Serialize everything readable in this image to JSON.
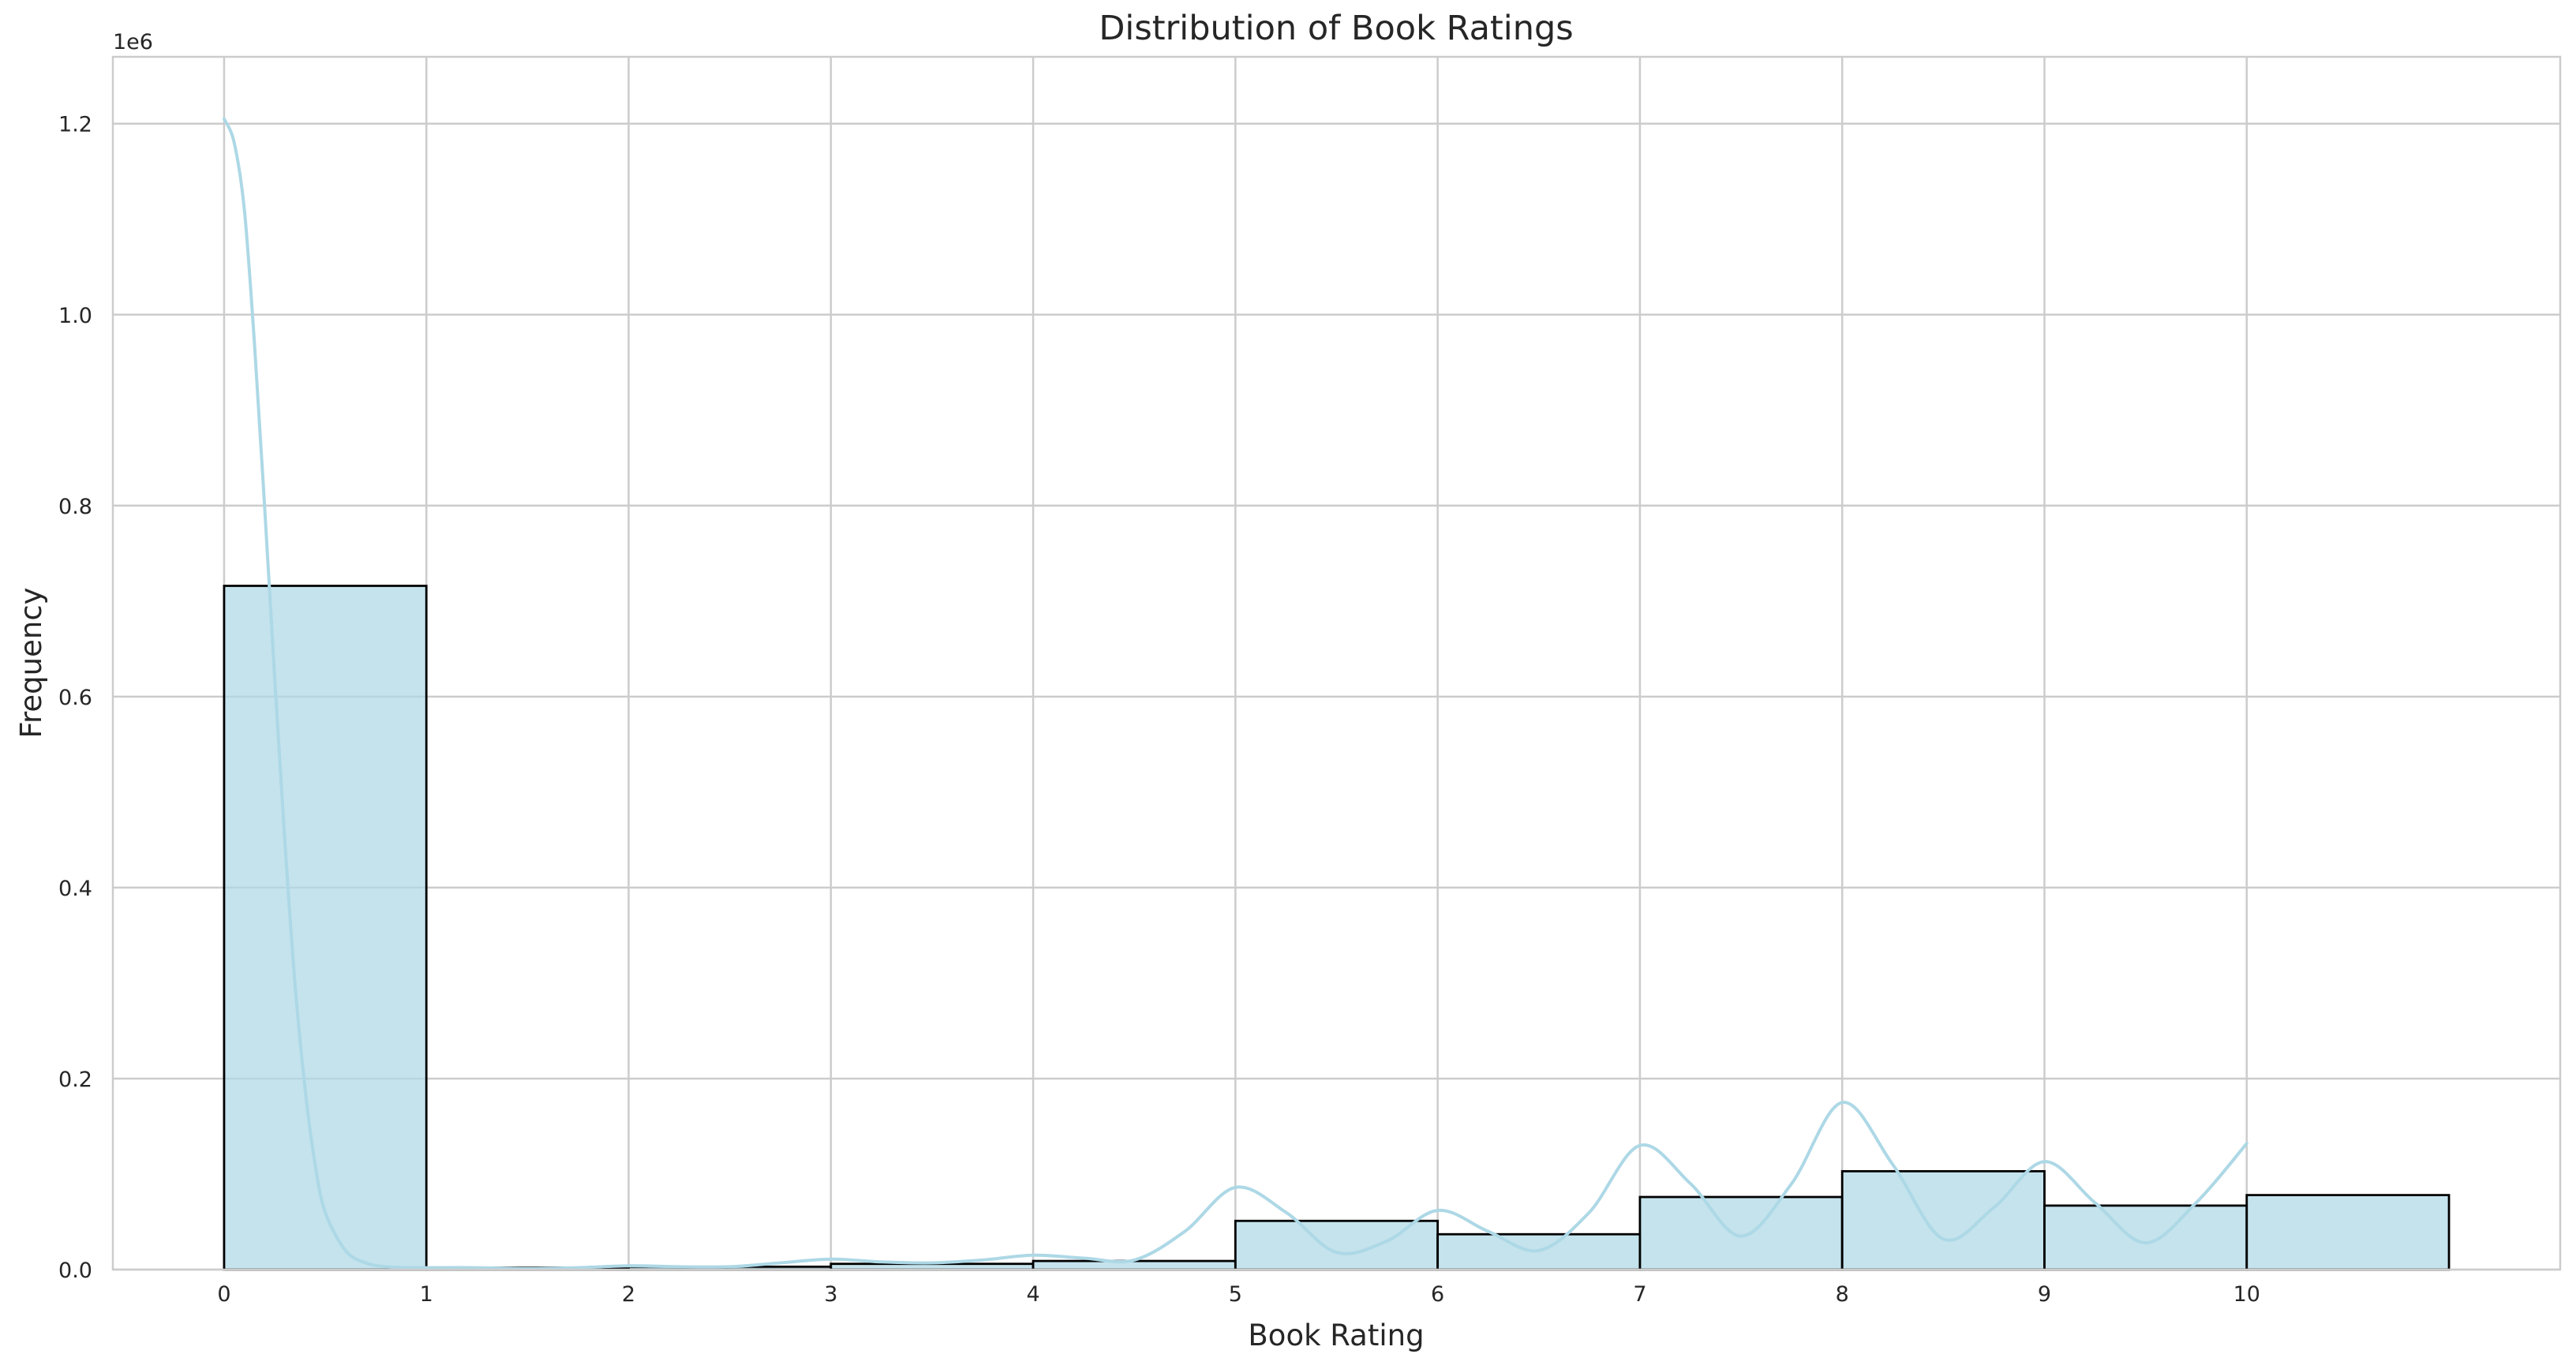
{
  "chart_data": {
    "type": "bar",
    "title": "Distribution of Book Ratings",
    "xlabel": "Book Rating",
    "ylabel": "Frequency",
    "y_offset_label": "1e6",
    "xlim": [
      -0.55,
      11.55
    ],
    "ylim": [
      0,
      1.27
    ],
    "x_ticks": [
      0,
      1,
      2,
      3,
      4,
      5,
      6,
      7,
      8,
      9,
      10
    ],
    "x_tick_labels": [
      "0",
      "1",
      "2",
      "3",
      "4",
      "5",
      "6",
      "7",
      "8",
      "9",
      "10"
    ],
    "y_ticks": [
      0.0,
      0.2,
      0.4,
      0.6,
      0.8,
      1.0,
      1.2
    ],
    "y_tick_labels": [
      "0.0",
      "0.2",
      "0.4",
      "0.6",
      "0.8",
      "1.0",
      "1.2"
    ],
    "grid": true,
    "bar_fill": "#add8e6",
    "bar_edge": "#000000",
    "kde_color": "#add8e6",
    "bins": [
      {
        "x0": 0,
        "x1": 1,
        "value": 0.716
      },
      {
        "x0": 1,
        "x1": 2,
        "value": 0.002
      },
      {
        "x0": 2,
        "x1": 3,
        "value": 0.003
      },
      {
        "x0": 3,
        "x1": 4,
        "value": 0.006
      },
      {
        "x0": 4,
        "x1": 5,
        "value": 0.009
      },
      {
        "x0": 5,
        "x1": 6,
        "value": 0.051
      },
      {
        "x0": 6,
        "x1": 7,
        "value": 0.037
      },
      {
        "x0": 7,
        "x1": 8,
        "value": 0.076
      },
      {
        "x0": 8,
        "x1": 9,
        "value": 0.103
      },
      {
        "x0": 9,
        "x1": 10,
        "value": 0.067
      },
      {
        "x0": 10,
        "x1": 11,
        "value": 0.078
      }
    ],
    "kde": {
      "x": [
        0,
        0.05,
        0.1,
        0.15,
        0.2,
        0.25,
        0.3,
        0.35,
        0.4,
        0.45,
        0.5,
        0.6,
        0.7,
        0.8,
        0.9,
        1.0,
        1.25,
        1.5,
        1.75,
        2.0,
        2.25,
        2.5,
        2.75,
        3.0,
        3.25,
        3.5,
        3.75,
        4.0,
        4.25,
        4.5,
        4.75,
        5.0,
        5.25,
        5.5,
        5.75,
        6.0,
        6.25,
        6.5,
        6.75,
        7.0,
        7.25,
        7.5,
        7.75,
        8.0,
        8.25,
        8.5,
        8.75,
        9.0,
        9.25,
        9.5,
        9.75,
        10.0
      ],
      "y": [
        1.205,
        1.18,
        1.11,
        0.97,
        0.8,
        0.62,
        0.45,
        0.3,
        0.19,
        0.11,
        0.06,
        0.02,
        0.007,
        0.003,
        0.002,
        0.002,
        0.002,
        0.001,
        0.002,
        0.004,
        0.003,
        0.003,
        0.007,
        0.011,
        0.008,
        0.007,
        0.01,
        0.015,
        0.012,
        0.01,
        0.04,
        0.086,
        0.06,
        0.018,
        0.03,
        0.062,
        0.04,
        0.02,
        0.06,
        0.13,
        0.09,
        0.035,
        0.09,
        0.175,
        0.11,
        0.032,
        0.065,
        0.113,
        0.07,
        0.028,
        0.07,
        0.132
      ]
    }
  }
}
